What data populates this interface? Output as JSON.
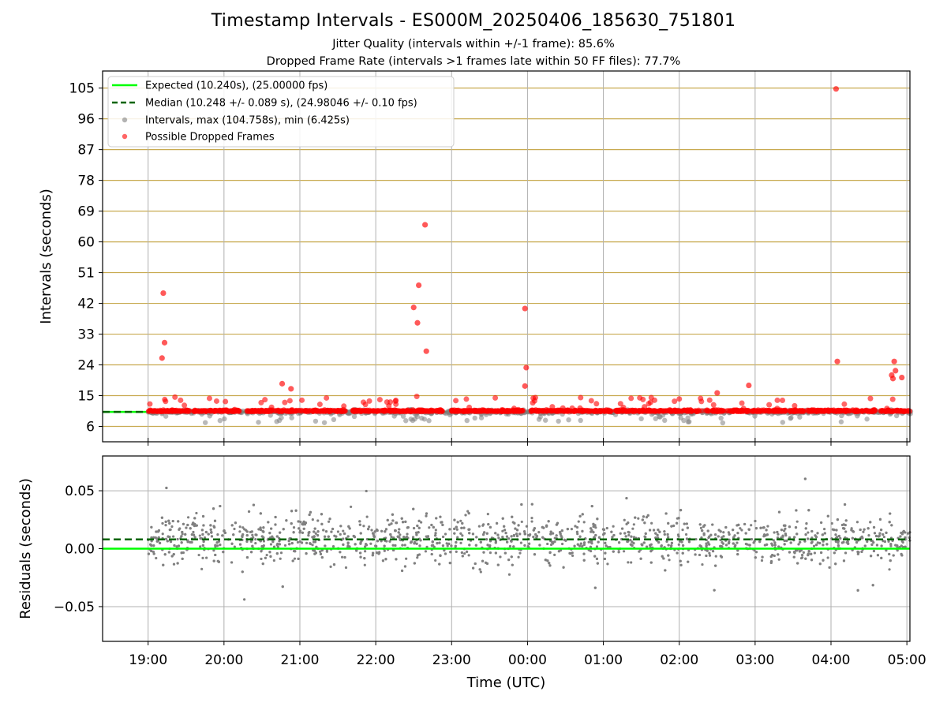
{
  "chart_data": [
    {
      "type": "scatter",
      "title": "Timestamp Intervals - ES000M_20250406_185630_751801",
      "subtitle_1": "Jitter Quality (intervals within +/-1 frame): 85.6%",
      "subtitle_2": "Dropped Frame Rate (intervals >1 frames late within 50 FF files): 77.7%",
      "ylabel": "Intervals (seconds)",
      "x_time_range_hours": [
        -0.6,
        10.04
      ],
      "ylim": [
        1.5,
        110
      ],
      "yticks": [
        "6",
        "15",
        "24",
        "33",
        "42",
        "51",
        "60",
        "69",
        "78",
        "87",
        "96",
        "105"
      ],
      "grid": true,
      "legend_position": "upper left",
      "legend": [
        "Expected (10.240s), (25.00000 fps)",
        "Median (10.248 +/- 0.089 s), (24.98046 +/- 0.10 fps)",
        "Intervals, max (104.758s), min (6.425s)",
        "Possible Dropped Frames"
      ],
      "expected": 10.24,
      "median": 10.248,
      "colors": {
        "expected": "#00ff00",
        "median": "#006400",
        "intervals": "#808080",
        "dropped": "#ff0000",
        "hgrid": "#c8aa50",
        "vgrid": "#b0b0b0"
      },
      "dropped_outliers": [
        {
          "t": "19:12",
          "y": 45.0
        },
        {
          "t": "19:13",
          "y": 30.5
        },
        {
          "t": "19:11",
          "y": 26.0
        },
        {
          "t": "20:46",
          "y": 18.5
        },
        {
          "t": "20:53",
          "y": 17.0
        },
        {
          "t": "22:30",
          "y": 40.8
        },
        {
          "t": "22:34",
          "y": 47.3
        },
        {
          "t": "22:33",
          "y": 36.3
        },
        {
          "t": "22:40",
          "y": 28.0
        },
        {
          "t": "22:39",
          "y": 65.0
        },
        {
          "t": "23:58",
          "y": 40.5
        },
        {
          "t": "23:59",
          "y": 23.2
        },
        {
          "t": "23:58",
          "y": 17.8
        },
        {
          "t": "02:30",
          "y": 15.8
        },
        {
          "t": "02:55",
          "y": 18.0
        },
        {
          "t": "04:04",
          "y": 104.758
        },
        {
          "t": "04:05",
          "y": 25.0
        },
        {
          "t": "04:50",
          "y": 25.0
        },
        {
          "t": "04:51",
          "y": 22.3
        },
        {
          "t": "04:48",
          "y": 21.0
        },
        {
          "t": "04:49",
          "y": 20.0
        },
        {
          "t": "04:56",
          "y": 20.3
        }
      ]
    },
    {
      "type": "scatter",
      "xlabel": "Time (UTC)",
      "ylabel": "Residuals (seconds)",
      "ylim": [
        -0.08,
        0.08
      ],
      "yticks": [
        "0.05",
        "0.00",
        "−0.05"
      ],
      "xticks": [
        "19:00",
        "20:00",
        "21:00",
        "22:00",
        "23:00",
        "00:00",
        "01:00",
        "02:00",
        "03:00",
        "04:00",
        "05:00"
      ],
      "zero_line": 0.0,
      "median_offset": 0.008,
      "colors": {
        "points": "#808080",
        "zero": "#00ff00",
        "median": "#006400",
        "grid": "#b0b0b0"
      }
    }
  ]
}
